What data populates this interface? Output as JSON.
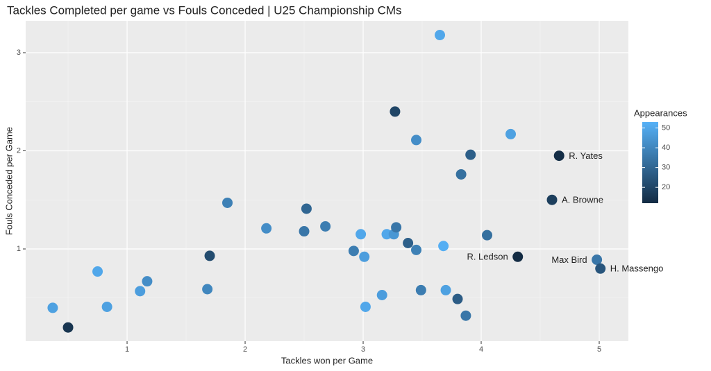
{
  "chart_data": {
    "type": "scatter",
    "title": "Tackles Completed per game vs Fouls Conceded | U25 Championship CMs",
    "x_label": "Tackles won per Game",
    "y_label": "Fouls Conceded per Game",
    "legend_title": "Appearances",
    "xlim": [
      0.141,
      5.247
    ],
    "ylim": [
      0.06,
      3.325
    ],
    "xticks": [
      1,
      2,
      3,
      4,
      5
    ],
    "yticks": [
      1,
      2,
      3
    ],
    "colorlim": [
      12,
      53
    ],
    "colorticks": [
      20,
      30,
      40,
      50
    ],
    "colors": [
      "#132B43",
      "#56B1F7"
    ],
    "grid": true,
    "x": [
      0.37,
      0.5,
      0.75,
      0.83,
      1.11,
      1.17,
      1.68,
      1.7,
      1.85,
      2.18,
      2.5,
      2.52,
      2.68,
      2.92,
      2.98,
      3.01,
      3.02,
      3.16,
      3.2,
      3.26,
      3.28,
      3.27,
      3.38,
      3.45,
      3.45,
      3.49,
      3.65,
      3.68,
      3.7,
      3.8,
      3.83,
      3.87,
      3.91,
      4.05,
      4.25,
      4.31,
      4.6,
      4.66,
      4.98,
      5.01
    ],
    "y": [
      0.4,
      0.2,
      0.77,
      0.41,
      0.57,
      0.67,
      0.59,
      0.93,
      1.47,
      1.21,
      1.18,
      1.41,
      1.23,
      0.98,
      1.15,
      0.92,
      0.41,
      0.53,
      1.15,
      1.15,
      1.22,
      2.4,
      1.06,
      2.11,
      0.99,
      0.58,
      3.18,
      1.03,
      0.58,
      0.49,
      1.76,
      0.32,
      1.96,
      1.14,
      2.17,
      0.92,
      1.5,
      1.95,
      0.89,
      0.8
    ],
    "appearances": [
      48,
      15,
      50,
      48,
      47,
      42,
      40,
      22,
      38,
      42,
      35,
      30,
      37,
      37,
      50,
      47,
      50,
      47,
      50,
      45,
      35,
      20,
      28,
      42,
      38,
      37,
      50,
      52,
      48,
      27,
      33,
      35,
      28,
      33,
      48,
      12,
      18,
      13,
      35,
      25
    ],
    "labels": [
      null,
      null,
      null,
      null,
      null,
      null,
      null,
      null,
      null,
      null,
      null,
      null,
      null,
      null,
      null,
      null,
      null,
      null,
      null,
      null,
      null,
      null,
      null,
      null,
      null,
      null,
      null,
      null,
      null,
      null,
      null,
      null,
      null,
      null,
      null,
      "R. Ledson",
      "A. Browne",
      "R. Yates",
      "Max Bird",
      "H. Massengo"
    ]
  }
}
